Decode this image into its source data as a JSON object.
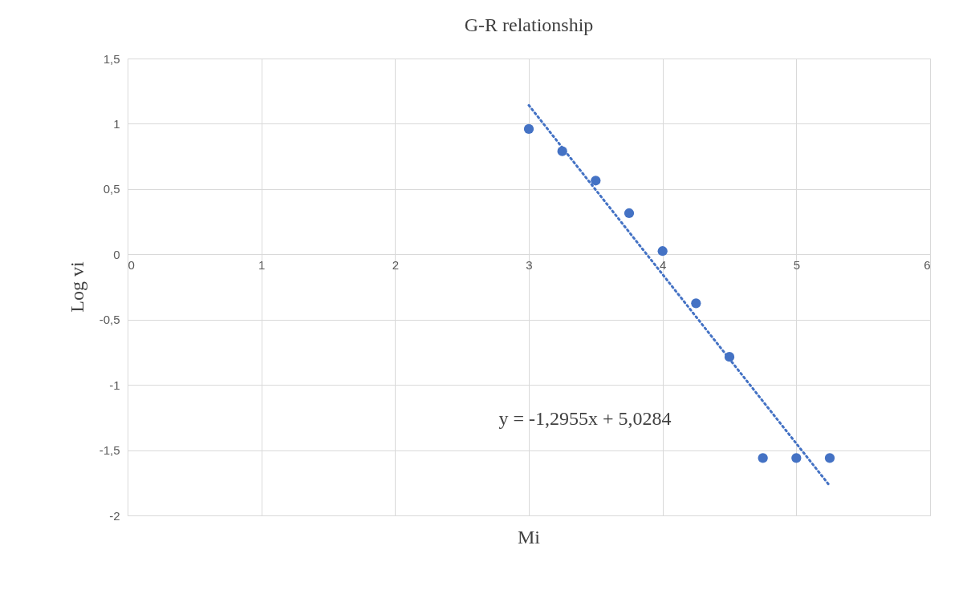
{
  "chart_data": {
    "type": "scatter",
    "title": "G-R relationship",
    "xlabel": "Mi",
    "ylabel": "Log vi",
    "xlim": [
      0,
      6
    ],
    "xticks": [
      0,
      1,
      2,
      3,
      4,
      5,
      6
    ],
    "ylim": [
      -2,
      1.5
    ],
    "yticks": [
      {
        "value": -2,
        "label": "-2"
      },
      {
        "value": -1.5,
        "label": "-1,5"
      },
      {
        "value": -1,
        "label": "-1"
      },
      {
        "value": -0.5,
        "label": "-0,5"
      },
      {
        "value": 0,
        "label": "0"
      },
      {
        "value": 0.5,
        "label": "0,5"
      },
      {
        "value": 1,
        "label": "1"
      },
      {
        "value": 1.5,
        "label": "1,5"
      }
    ],
    "grid": true,
    "marker": "circle",
    "series": [
      {
        "color": "#4472c4",
        "x": [
          3,
          3.25,
          3.5,
          3.75,
          4,
          4.25,
          4.5,
          4.75,
          5,
          5.25
        ],
        "values": [
          0.96,
          0.79,
          0.565,
          0.315,
          0.025,
          -0.375,
          -0.785,
          -1.56,
          -1.56,
          -1.56
        ]
      },
      {
        "type": "line",
        "marker": "none",
        "color": "#4472c4",
        "line_style": "dotted",
        "x": [
          3,
          5.25
        ],
        "values": [
          1.142,
          -1.773
        ]
      }
    ],
    "annotations": [
      "y = -1,2955x + 5,0284"
    ]
  }
}
